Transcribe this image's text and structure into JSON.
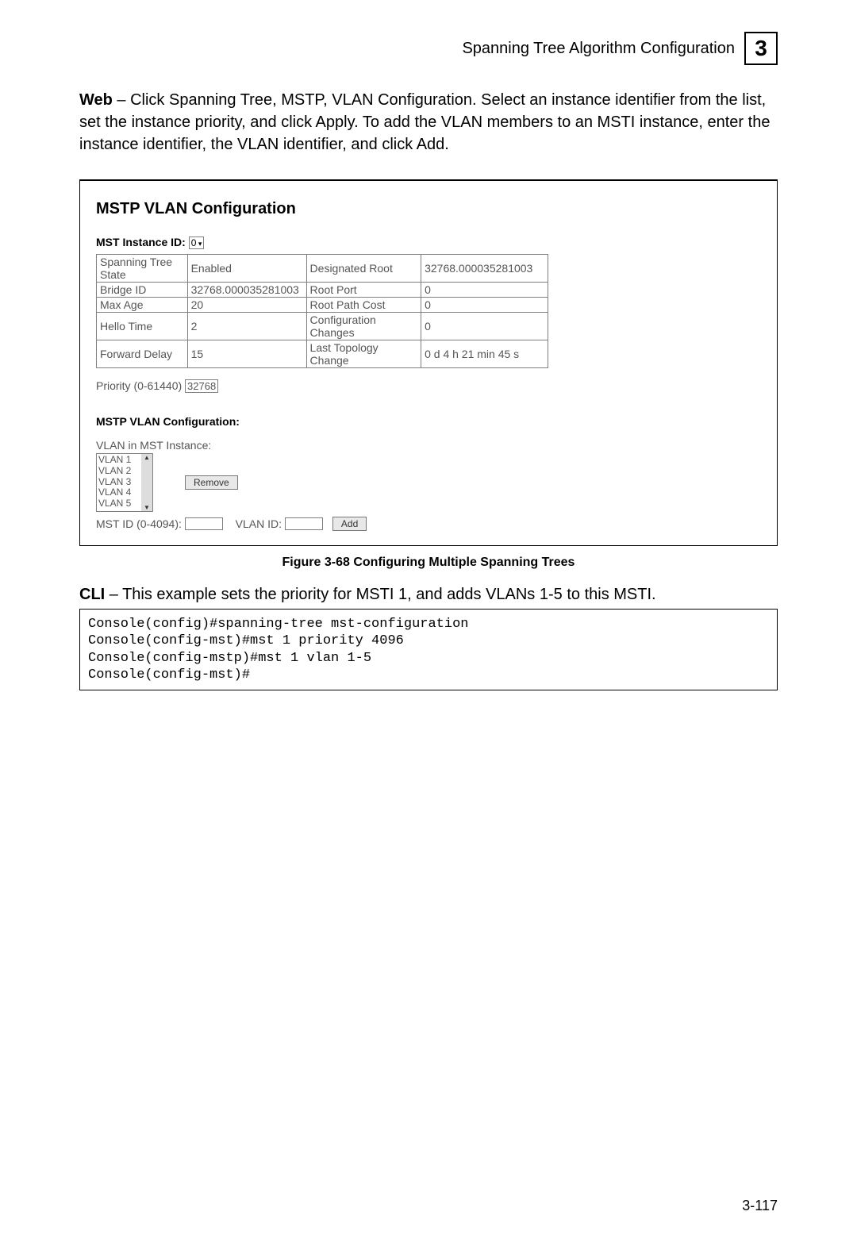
{
  "header": {
    "title": "Spanning Tree Algorithm Configuration",
    "chapter": "3"
  },
  "intro": {
    "lead": "Web",
    "rest": " – Click Spanning Tree, MSTP, VLAN Configuration. Select an instance identifier from the list, set the instance priority, and click Apply. To add the VLAN members to an MSTI instance, enter the instance identifier, the VLAN identifier, and click Add."
  },
  "panel": {
    "title": "MSTP VLAN Configuration",
    "mst_id_label": "MST Instance ID:",
    "mst_id_value": "0",
    "table": {
      "rows": [
        [
          "Spanning Tree State",
          "Enabled",
          "Designated Root",
          "32768.000035281003"
        ],
        [
          "Bridge ID",
          "32768.000035281003",
          "Root Port",
          "0"
        ],
        [
          "Max Age",
          "20",
          "Root Path Cost",
          "0"
        ],
        [
          "Hello Time",
          "2",
          "Configuration Changes",
          "0"
        ],
        [
          "Forward Delay",
          "15",
          "Last Topology Change",
          "0 d 4 h 21 min 45 s"
        ]
      ]
    },
    "priority_label": "Priority (0-61440)",
    "priority_value": "32768",
    "sub_title": "MSTP VLAN Configuration:",
    "vlan_list_label": "VLAN in MST Instance:",
    "vlan_items": [
      "VLAN 1",
      "VLAN 2",
      "VLAN 3",
      "VLAN 4",
      "VLAN 5"
    ],
    "remove_label": "Remove",
    "mstid_label": "MST ID (0-4094):",
    "vlanid_label": "VLAN ID:",
    "add_label": "Add"
  },
  "figure_caption": "Figure 3-68  Configuring Multiple Spanning Trees",
  "cli": {
    "lead": "CLI",
    "rest": " – This example sets the priority for MSTI 1, and adds VLANs 1-5 to this MSTI.",
    "code": "Console(config)#spanning-tree mst-configuration\nConsole(config-mst)#mst 1 priority 4096\nConsole(config-mstp)#mst 1 vlan 1-5\nConsole(config-mst)#"
  },
  "page_number": "3-117"
}
